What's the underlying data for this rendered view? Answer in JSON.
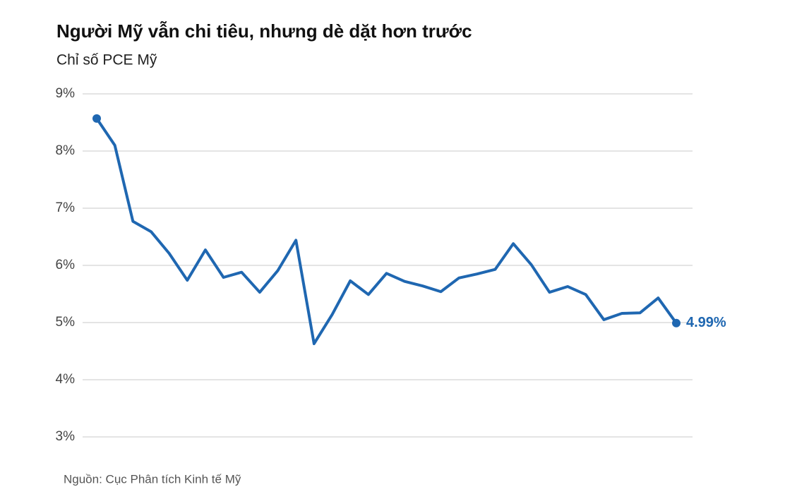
{
  "chart_data": {
    "type": "line",
    "title": "Người Mỹ vẫn chi tiêu, nhưng dè dặt hơn trước",
    "subtitle": "Chỉ số PCE Mỹ",
    "source": "Nguồn: Cục Phân tích Kinh tế Mỹ",
    "categories": [
      null,
      null,
      null,
      null,
      null,
      null,
      null,
      null,
      null,
      null,
      null,
      null,
      null,
      null,
      null,
      null,
      null,
      null,
      null,
      null,
      null,
      null,
      null,
      null,
      null,
      null,
      null,
      null,
      null,
      null,
      null,
      null,
      null
    ],
    "values": [
      8.57,
      8.1,
      6.77,
      6.59,
      6.21,
      5.74,
      6.27,
      5.79,
      5.88,
      5.53,
      5.91,
      6.44,
      4.63,
      5.14,
      5.73,
      5.49,
      5.86,
      5.72,
      5.64,
      5.54,
      5.78,
      5.85,
      5.93,
      6.38,
      6.01,
      5.53,
      5.63,
      5.49,
      5.05,
      5.16,
      5.17,
      5.43,
      4.99
    ],
    "value_labels": [
      null,
      null,
      null,
      null,
      null,
      null,
      null,
      null,
      null,
      null,
      null,
      null,
      null,
      null,
      null,
      null,
      null,
      null,
      null,
      null,
      null,
      null,
      null,
      null,
      null,
      null,
      null,
      null,
      null,
      null,
      null,
      null,
      "4.99%"
    ],
    "color": "#1f67b1",
    "ylim": [
      3,
      9
    ],
    "yticks": [
      {
        "value": 3,
        "label": "3%"
      },
      {
        "value": 4,
        "label": "4%"
      },
      {
        "value": 5,
        "label": "5%"
      },
      {
        "value": 6,
        "label": "6%"
      },
      {
        "value": 7,
        "label": "7%"
      },
      {
        "value": 8,
        "label": "8%"
      },
      {
        "value": 9,
        "label": "9%"
      }
    ],
    "grid": true
  }
}
